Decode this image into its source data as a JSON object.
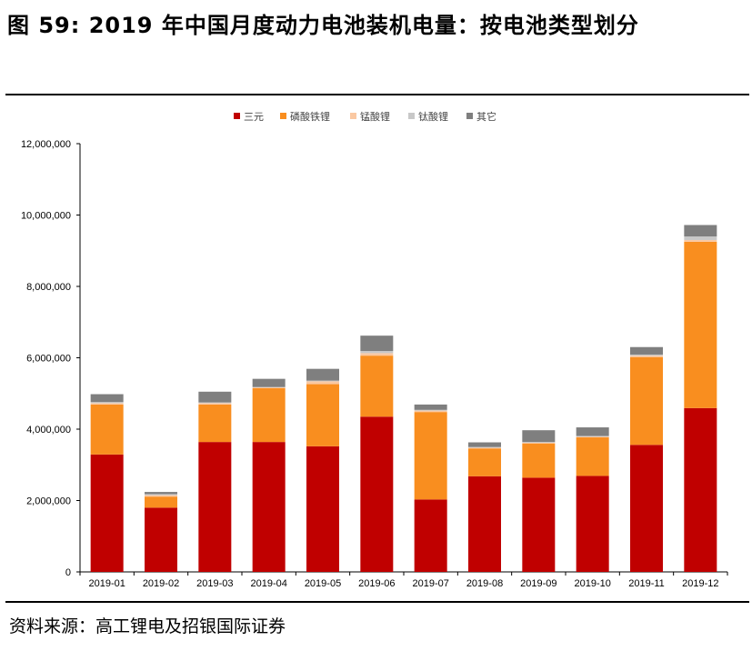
{
  "title": "图 59: 2019 年中国月度动力电池装机电量：按电池类型划分",
  "source": "资料来源：高工锂电及招银国际证券",
  "chart_data": {
    "type": "bar",
    "stacked": true,
    "categories": [
      "2019-01",
      "2019-02",
      "2019-03",
      "2019-04",
      "2019-05",
      "2019-06",
      "2019-07",
      "2019-08",
      "2019-09",
      "2019-10",
      "2019-11",
      "2019-12"
    ],
    "series": [
      {
        "name": "三元",
        "color": "#C00000",
        "values": [
          3290000,
          1800000,
          3640000,
          3640000,
          3520000,
          4350000,
          2030000,
          2680000,
          2640000,
          2690000,
          3560000,
          4590000
        ]
      },
      {
        "name": "磷酸铁锂",
        "color": "#F98E1F",
        "values": [
          1400000,
          310000,
          1050000,
          1510000,
          1740000,
          1710000,
          2450000,
          780000,
          960000,
          1080000,
          2460000,
          4660000
        ]
      },
      {
        "name": "锰酸锂",
        "color": "#FAC8A2",
        "values": [
          40000,
          40000,
          40000,
          20000,
          80000,
          70000,
          40000,
          20000,
          20000,
          20000,
          40000,
          50000
        ]
      },
      {
        "name": "钛酸锂",
        "color": "#C8C8C8",
        "values": [
          30000,
          30000,
          20000,
          10000,
          20000,
          60000,
          20000,
          20000,
          20000,
          20000,
          30000,
          100000
        ]
      },
      {
        "name": "其它",
        "color": "#7F7F7F",
        "values": [
          220000,
          60000,
          300000,
          230000,
          330000,
          430000,
          150000,
          130000,
          330000,
          240000,
          210000,
          320000
        ]
      }
    ],
    "ylim": [
      0,
      12000000
    ],
    "yticks": [
      "0",
      "2,000,000",
      "4,000,000",
      "6,000,000",
      "8,000,000",
      "10,000,000",
      "12,000,000"
    ],
    "legend_position": "top",
    "grid": false
  }
}
